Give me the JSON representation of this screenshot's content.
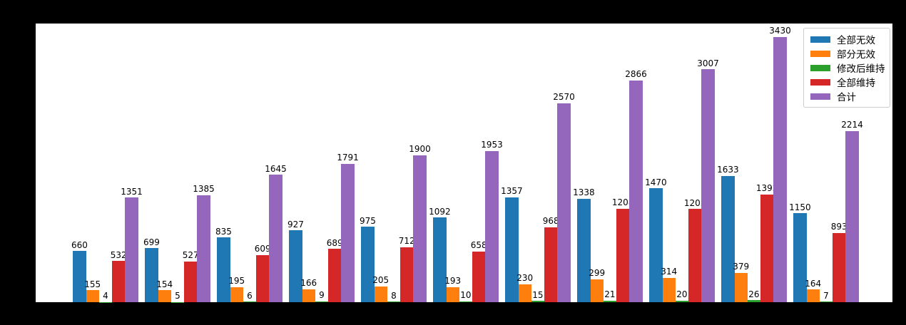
{
  "chart_data": {
    "type": "bar",
    "title": "",
    "grid": false,
    "ylim": [
      0,
      3600
    ],
    "legend_position": "upper right",
    "bar_value_labels": true,
    "x_tick_labels_visible": false,
    "n_groups": 11,
    "series": [
      {
        "name": "全部无效",
        "color": "#1f77b4",
        "values": [
          660,
          699,
          835,
          927,
          975,
          1092,
          1357,
          1338,
          1470,
          1633,
          1150
        ]
      },
      {
        "name": "部分无效",
        "color": "#ff7f0e",
        "values": [
          155,
          154,
          195,
          166,
          205,
          193,
          230,
          299,
          314,
          379,
          164
        ]
      },
      {
        "name": "修改后维持",
        "color": "#2ca02c",
        "values": [
          4,
          5,
          6,
          9,
          8,
          10,
          15,
          21,
          20,
          26,
          7
        ]
      },
      {
        "name": "全部维持",
        "color": "#d62728",
        "values": [
          532,
          527,
          609,
          689,
          712,
          658,
          968,
          1208,
          1203,
          1392,
          893
        ]
      },
      {
        "name": "合计",
        "color": "#9467bd",
        "values": [
          1351,
          1385,
          1645,
          1791,
          1900,
          1953,
          2570,
          2866,
          3007,
          3430,
          2214
        ]
      }
    ],
    "colors": {
      "figure_background": "#000000",
      "axes_background": "#ffffff",
      "label_text": "#000000",
      "legend_border": "#cccccc"
    }
  }
}
